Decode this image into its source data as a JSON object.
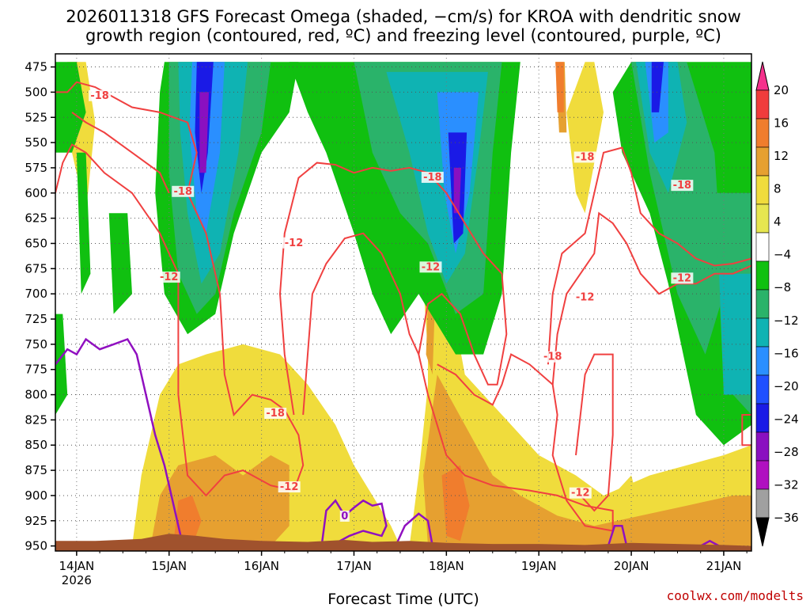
{
  "title": {
    "line1": "2026011318 GFS Forecast Omega (shaded, −cm/s) for KROA with dendritic snow",
    "line2": "growth region (contoured, red, ºC) and freezing level (contoured, purple, ºC)"
  },
  "credit": "coolwx.com/modelts",
  "chart_data": {
    "type": "heatmap",
    "xlabel": "Forecast Time (UTC)",
    "ylabel": "",
    "x_ticks": [
      {
        "label": "14JAN",
        "sub": "2026"
      },
      {
        "label": "15JAN",
        "sub": ""
      },
      {
        "label": "16JAN",
        "sub": ""
      },
      {
        "label": "17JAN",
        "sub": ""
      },
      {
        "label": "18JAN",
        "sub": ""
      },
      {
        "label": "19JAN",
        "sub": ""
      },
      {
        "label": "20JAN",
        "sub": ""
      },
      {
        "label": "21JAN",
        "sub": ""
      }
    ],
    "xlim_days": [
      13.77,
      21.3
    ],
    "y_ticks": [
      475,
      500,
      525,
      550,
      575,
      600,
      625,
      650,
      675,
      700,
      725,
      750,
      775,
      800,
      825,
      850,
      875,
      900,
      925,
      950
    ],
    "ylim": [
      462,
      955
    ],
    "grid": true,
    "colorbar": {
      "labels": [
        "20",
        "16",
        "12",
        "8",
        "4",
        "−4",
        "−8",
        "−12",
        "−16",
        "−20",
        "−24",
        "−28",
        "−32",
        "−36"
      ],
      "colors": [
        "#f5318c",
        "#f03c3c",
        "#f07d2d",
        "#e6a030",
        "#f0dc3c",
        "#e6e650",
        "#ffffff",
        "#10c010",
        "#2ab36a",
        "#0fb3b3",
        "#2a8fff",
        "#2050ff",
        "#1a1ae6",
        "#8a10c0",
        "#b010c0",
        "#a0a0a0",
        "#000000"
      ]
    },
    "omega_regions": [
      {
        "level": "positive_4_8",
        "color": "#f0dc3c"
      },
      {
        "level": "positive_8_12",
        "color": "#e6a030"
      },
      {
        "level": "positive_12_16",
        "color": "#f07d2d"
      },
      {
        "level": "negative_4_8",
        "color": "#10c010"
      },
      {
        "level": "negative_8_12",
        "color": "#2ab36a"
      },
      {
        "level": "negative_12_16",
        "color": "#0fb3b3"
      },
      {
        "level": "negative_16_20",
        "color": "#2a8fff"
      },
      {
        "level": "negative_20_24",
        "color": "#1a1ae6"
      },
      {
        "level": "negative_24_28",
        "color": "#8a10c0"
      }
    ],
    "contours": {
      "dgz_color": "#f04040",
      "freezing_color": "#9010c0",
      "labels": [
        {
          "text": "-18",
          "day": 14.25,
          "p": 505
        },
        {
          "text": "-18",
          "day": 15.15,
          "p": 600
        },
        {
          "text": "-12",
          "day": 15.0,
          "p": 685
        },
        {
          "text": "-12",
          "day": 16.35,
          "p": 651
        },
        {
          "text": "-18",
          "day": 17.85,
          "p": 586
        },
        {
          "text": "-12",
          "day": 17.83,
          "p": 675
        },
        {
          "text": "-18",
          "day": 19.5,
          "p": 566
        },
        {
          "text": "-12",
          "day": 19.5,
          "p": 705
        },
        {
          "text": "-18",
          "day": 19.15,
          "p": 764
        },
        {
          "text": "-18",
          "day": 16.15,
          "p": 820
        },
        {
          "text": "-12",
          "day": 16.3,
          "p": 893
        },
        {
          "text": "-12",
          "day": 19.45,
          "p": 899
        },
        {
          "text": "-18",
          "day": 20.55,
          "p": 594
        },
        {
          "text": "-12",
          "day": 20.55,
          "p": 686
        },
        {
          "text": "0",
          "day": 16.9,
          "p": 922
        }
      ]
    }
  }
}
